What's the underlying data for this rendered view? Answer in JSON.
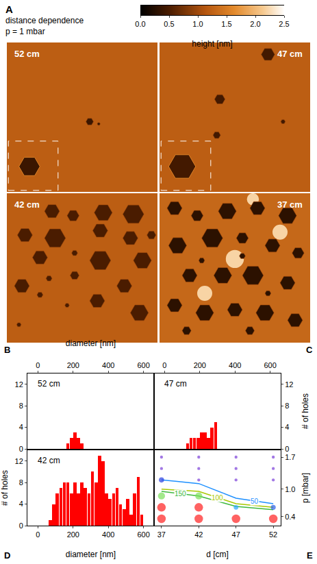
{
  "panel_a": {
    "letter": "A",
    "title": "distance dependence",
    "subtitle": "p = 1 mbar",
    "colorbar": {
      "title": "height [nm]",
      "range": [
        0,
        2.5
      ],
      "ticks": [
        {
          "value": 0,
          "label": "0.0"
        },
        0.5,
        {
          "value": 1,
          "label": "1.0"
        },
        1.5,
        {
          "value": 2,
          "label": "2.0"
        },
        2.5
      ],
      "colorscale": [
        [
          0,
          "#000000"
        ],
        [
          0.2,
          "#4a1c00"
        ],
        [
          0.45,
          "#b5560f"
        ],
        [
          0.65,
          "#e38a2c"
        ],
        [
          0.85,
          "#f6c98f"
        ],
        [
          1,
          "#ffffff"
        ]
      ]
    },
    "images": [
      {
        "label": "52 cm",
        "base_height": 1.2,
        "hole_height": 0.4,
        "bump_height": 2.2,
        "holes": [
          [
            0.55,
            0.47,
            0.025
          ],
          [
            0.61,
            0.455,
            0.01
          ]
        ],
        "bumps": [],
        "inset": [
          [
            0.15,
            0.17,
            0.07
          ]
        ]
      },
      {
        "label": "47 cm",
        "base_height": 1.2,
        "hole_height": 0.45,
        "bump_height": 2.2,
        "holes": [
          [
            0.72,
            0.92,
            0.045
          ],
          [
            0.4,
            0.62,
            0.035
          ],
          [
            0.38,
            0.38,
            0.025
          ],
          [
            0.82,
            0.47,
            0.015
          ]
        ],
        "bumps": [],
        "inset": [
          [
            0.15,
            0.17,
            0.09
          ]
        ]
      },
      {
        "label": "42 cm",
        "base_height": 1.2,
        "hole_height": 0.5,
        "bump_height": 2.2,
        "holes": [
          [
            0.3,
            0.88,
            0.05
          ],
          [
            0.44,
            0.85,
            0.04
          ],
          [
            0.64,
            0.87,
            0.06
          ],
          [
            0.84,
            0.86,
            0.07
          ],
          [
            0.12,
            0.72,
            0.05
          ],
          [
            0.32,
            0.7,
            0.07
          ],
          [
            0.62,
            0.75,
            0.05
          ],
          [
            0.82,
            0.7,
            0.05
          ],
          [
            0.96,
            0.72,
            0.03
          ],
          [
            0.22,
            0.57,
            0.05
          ],
          [
            0.45,
            0.6,
            0.02
          ],
          [
            0.62,
            0.55,
            0.07
          ],
          [
            0.9,
            0.55,
            0.06
          ],
          [
            0.28,
            0.43,
            0.02
          ],
          [
            0.45,
            0.45,
            0.03
          ],
          [
            0.78,
            0.38,
            0.05
          ],
          [
            0.1,
            0.38,
            0.05
          ],
          [
            0.22,
            0.32,
            0.02
          ],
          [
            0.6,
            0.28,
            0.05
          ],
          [
            0.88,
            0.2,
            0.06
          ],
          [
            0.4,
            0.25,
            0.015
          ],
          [
            0.08,
            0.12,
            0.015
          ]
        ],
        "bumps": [],
        "inset": []
      },
      {
        "label": "37 cm",
        "base_height": 1.3,
        "hole_height": 0.3,
        "bump_height": 2.2,
        "holes": [
          [
            0.1,
            0.9,
            0.05
          ],
          [
            0.25,
            0.85,
            0.04
          ],
          [
            0.45,
            0.88,
            0.06
          ],
          [
            0.65,
            0.9,
            0.05
          ],
          [
            0.85,
            0.85,
            0.06
          ],
          [
            0.12,
            0.65,
            0.06
          ],
          [
            0.35,
            0.7,
            0.07
          ],
          [
            0.55,
            0.7,
            0.04
          ],
          [
            0.75,
            0.65,
            0.05
          ],
          [
            0.92,
            0.6,
            0.04
          ],
          [
            0.2,
            0.45,
            0.05
          ],
          [
            0.42,
            0.45,
            0.06
          ],
          [
            0.62,
            0.45,
            0.07
          ],
          [
            0.85,
            0.4,
            0.05
          ],
          [
            0.1,
            0.25,
            0.05
          ],
          [
            0.3,
            0.2,
            0.06
          ],
          [
            0.5,
            0.22,
            0.05
          ],
          [
            0.7,
            0.2,
            0.06
          ],
          [
            0.9,
            0.15,
            0.05
          ],
          [
            0.28,
            0.55,
            0.02
          ],
          [
            0.55,
            0.58,
            0.02
          ],
          [
            0.72,
            0.33,
            0.02
          ],
          [
            0.18,
            0.08,
            0.03
          ],
          [
            0.6,
            0.08,
            0.03
          ]
        ],
        "bumps": [
          [
            0.5,
            0.56,
            0.06
          ],
          [
            0.3,
            0.33,
            0.05
          ],
          [
            0.8,
            0.74,
            0.05
          ],
          [
            0.62,
            0.96,
            0.04
          ]
        ],
        "inset": []
      }
    ]
  },
  "chart_data": [
    {
      "type": "bar",
      "letter": "B",
      "label": "52 cm",
      "x_label": "diameter [nm]",
      "bins": [
        0,
        20,
        40,
        60,
        80,
        100,
        120,
        140,
        160,
        180,
        200,
        220,
        240,
        260,
        280,
        300,
        320,
        340,
        360,
        380,
        400,
        420,
        440,
        460,
        480,
        500,
        520,
        540,
        560,
        580,
        600,
        620,
        640
      ],
      "values": [
        0,
        0,
        0,
        0,
        0,
        0,
        0,
        0,
        1,
        2,
        3,
        2,
        1,
        0,
        0,
        0,
        0,
        0,
        0,
        0,
        0,
        0,
        0,
        0,
        0,
        0,
        0,
        0,
        0,
        0,
        0,
        0
      ],
      "color": "#ff0000",
      "xlim": [
        -60,
        660
      ],
      "xticks": [
        0,
        200,
        400,
        600
      ],
      "ylim": [
        0,
        14
      ],
      "yticks": [
        0,
        4,
        8,
        12
      ]
    },
    {
      "type": "bar",
      "letter": "C",
      "label": "47 cm",
      "y_label": "# of holes",
      "bins": [
        0,
        20,
        40,
        60,
        80,
        100,
        120,
        140,
        160,
        180,
        200,
        220,
        240,
        260,
        280,
        300,
        320,
        340,
        360,
        380,
        400,
        420,
        440,
        460,
        480,
        500,
        520,
        540,
        560,
        580,
        600,
        620,
        640
      ],
      "values": [
        0,
        0,
        0,
        0,
        0,
        0,
        1,
        2,
        2,
        2,
        3,
        3,
        2,
        4,
        5,
        0,
        0,
        0,
        0,
        0,
        0,
        0,
        0,
        0,
        0,
        0,
        0,
        0,
        0,
        0,
        0,
        0
      ],
      "color": "#ff0000",
      "xlim": [
        -60,
        660
      ],
      "xticks": [
        0,
        200,
        400,
        600
      ],
      "ylim": [
        0,
        14
      ],
      "yticks": [
        0,
        4,
        8,
        12
      ]
    },
    {
      "type": "bar",
      "letter": "D",
      "label": "42 cm",
      "x_label": "diameter [nm]",
      "y_label": "# of holes",
      "bins": [
        0,
        20,
        40,
        60,
        80,
        100,
        120,
        140,
        160,
        180,
        200,
        220,
        240,
        260,
        280,
        300,
        320,
        340,
        360,
        380,
        400,
        420,
        440,
        460,
        480,
        500,
        520,
        540,
        560,
        580,
        600,
        620,
        640
      ],
      "values": [
        0,
        0,
        0,
        1,
        4,
        6,
        7,
        8,
        8,
        6,
        8,
        6,
        8,
        7,
        6,
        10,
        8,
        13,
        12,
        6,
        5,
        6,
        7,
        4,
        3,
        5,
        2,
        6,
        9,
        2,
        0,
        0
      ],
      "color": "#ff0000",
      "xlim": [
        -60,
        660
      ],
      "xticks": [
        0,
        200,
        400,
        600
      ],
      "ylim": [
        0,
        14
      ],
      "yticks": [
        0,
        4,
        8,
        12
      ]
    },
    {
      "type": "scatter",
      "letter": "E",
      "x_label": "d [cm]",
      "y_label": "p [mbar]",
      "x": [
        37,
        37,
        37,
        37,
        37,
        37,
        42,
        42,
        42,
        42,
        42,
        42,
        47,
        47,
        47,
        47,
        47,
        52,
        52,
        52,
        52,
        52
      ],
      "y": [
        0.35,
        0.6,
        0.85,
        1.2,
        1.45,
        1.7,
        0.35,
        0.6,
        0.85,
        1.2,
        1.45,
        1.7,
        0.35,
        0.6,
        1.2,
        1.45,
        1.7,
        0.35,
        0.6,
        1.2,
        1.45,
        1.7
      ],
      "size": [
        250,
        250,
        150,
        60,
        5,
        5,
        250,
        250,
        150,
        5,
        5,
        5,
        250,
        40,
        5,
        5,
        5,
        250,
        50,
        5,
        5,
        5
      ],
      "colors": [
        "#ff2020",
        "#ff2020",
        "#7be05a",
        "#2a3fe0",
        "#7b3fd8",
        "#7b3fd8",
        "#ff2020",
        "#ff2020",
        "#7be05a",
        "#7b3fd8",
        "#7b3fd8",
        "#7b3fd8",
        "#ff2020",
        "#2aa8ff",
        "#7b3fd8",
        "#7b3fd8",
        "#7b3fd8",
        "#ff2020",
        "#2a5fe8",
        "#7b3fd8",
        "#7b3fd8",
        "#7b3fd8"
      ],
      "lines": [
        {
          "label": "150",
          "color": "#3cb83c",
          "x": [
            37,
            42,
            47,
            52
          ],
          "y": [
            0.95,
            0.85,
            0.62,
            0.55
          ]
        },
        {
          "label": "100",
          "color": "#a8c800",
          "x": [
            37,
            42,
            47,
            52
          ],
          "y": [
            1.0,
            0.95,
            0.68,
            0.6
          ]
        },
        {
          "label": "50",
          "color": "#1e90ff",
          "x": [
            37,
            42,
            47,
            52
          ],
          "y": [
            1.2,
            1.12,
            0.8,
            0.68
          ]
        }
      ],
      "xlim": [
        36,
        53
      ],
      "xticks": [
        37,
        42,
        47,
        52
      ],
      "ylim": [
        0.2,
        1.85
      ],
      "yticks": [
        0.4,
        {
          "value": 1,
          "label": "1.0"
        },
        1.7
      ]
    }
  ]
}
